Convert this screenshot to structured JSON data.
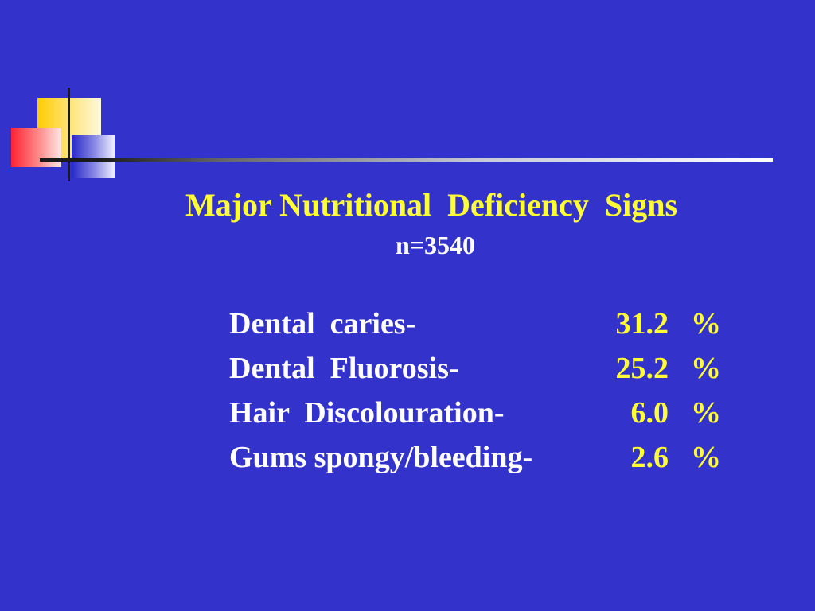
{
  "title": "Major Nutritional  Deficiency  Signs",
  "subtitle": "n=3540",
  "rows": [
    {
      "label": "Dental  caries-",
      "value": "31.2",
      "unit": "%"
    },
    {
      "label": "Dental  Fluorosis-",
      "value": "25.2",
      "unit": "%"
    },
    {
      "label": "Hair  Discolouration-",
      "value": "6.0",
      "unit": "%"
    },
    {
      "label": "Gums spongy/bleeding-",
      "value": "2.6",
      "unit": "%"
    }
  ],
  "colors": {
    "background": "#3333cc",
    "title": "#ffff33",
    "label": "#ffffff",
    "value": "#ffff33"
  }
}
